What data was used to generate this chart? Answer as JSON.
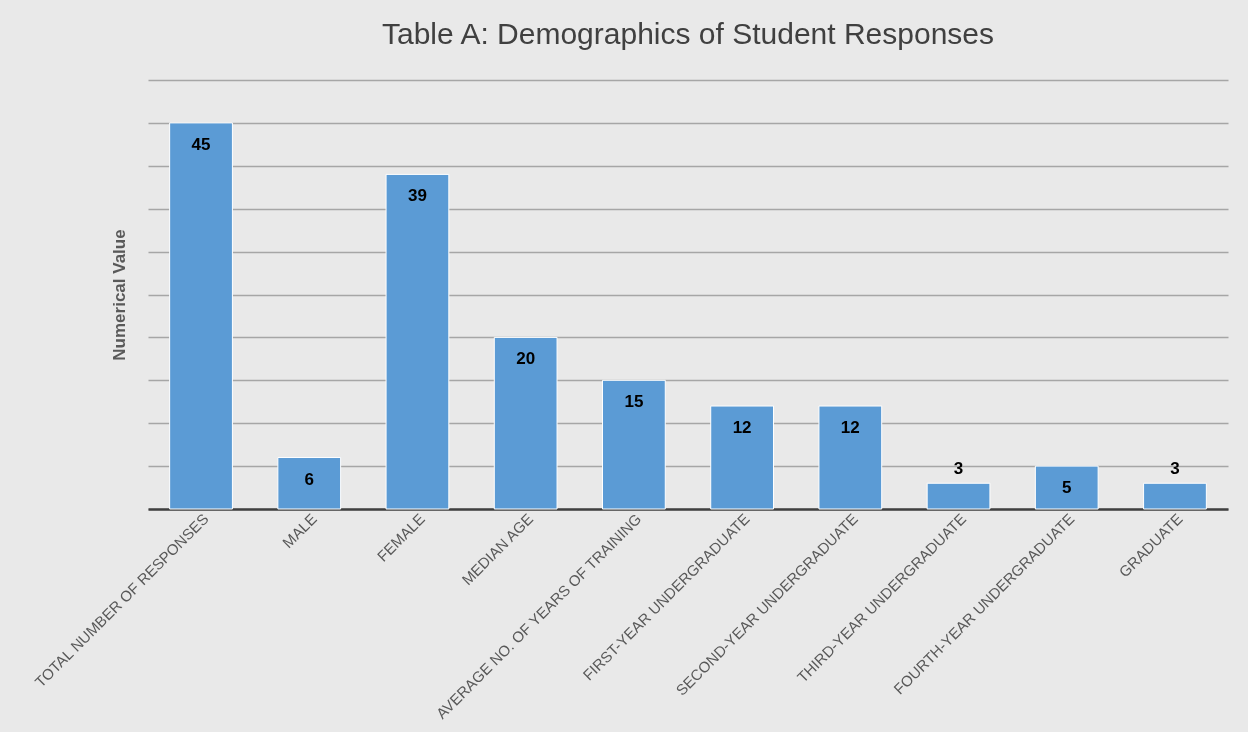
{
  "chart_data": {
    "type": "bar",
    "title": "Table A: Demographics of Student Responses",
    "ylabel": "Numerical Value",
    "categories": [
      "TOTAL NUMBER OF RESPONSES",
      "MALE",
      "FEMALE",
      "MEDIAN AGE",
      "AVERAGE NO. OF YEARS OF TRAINING",
      "FIRST-YEAR UNDERGRADUATE",
      "SECOND-YEAR UNDERGRADUATE",
      "THIRD-YEAR UNDERGRADUATE",
      "FOURTH-YEAR UNDERGRADUATE",
      "GRADUATE"
    ],
    "values": [
      45,
      6,
      39,
      20,
      15,
      12,
      12,
      3,
      5,
      3
    ],
    "color": "#5b9bd5",
    "ylim": [
      0,
      50
    ],
    "yticks": [
      {
        "value": 0,
        "label": null
      },
      {
        "value": 5,
        "label": null
      },
      {
        "value": 10,
        "label": null
      },
      {
        "value": 15,
        "label": null
      },
      {
        "value": 20,
        "label": null
      },
      {
        "value": 25,
        "label": null
      },
      {
        "value": 30,
        "label": null
      },
      {
        "value": 35,
        "label": null
      },
      {
        "value": 40,
        "label": null
      },
      {
        "value": 45,
        "label": null
      },
      {
        "value": 50,
        "label": null
      }
    ],
    "grid": "y",
    "tick_labels": "x",
    "data_labels": true
  }
}
